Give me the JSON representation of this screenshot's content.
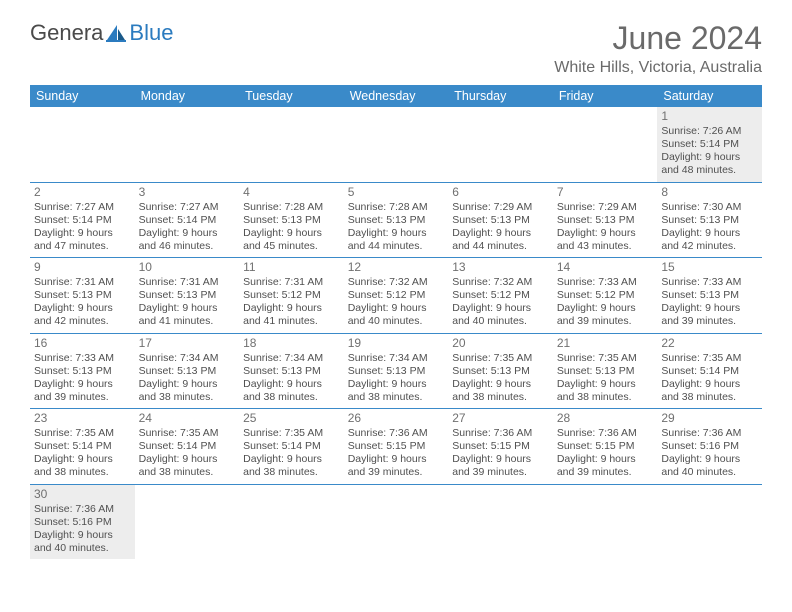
{
  "logo": {
    "part1": "Genera",
    "part2": "Blue"
  },
  "title": "June 2024",
  "location": "White Hills, Victoria, Australia",
  "colors": {
    "header_bg": "#3a8ac9",
    "header_text": "#ffffff",
    "rule": "#3a8ac9",
    "shade": "#ededed",
    "title_color": "#6a6a6a",
    "body_text": "#505050"
  },
  "weekdays": [
    "Sunday",
    "Monday",
    "Tuesday",
    "Wednesday",
    "Thursday",
    "Friday",
    "Saturday"
  ],
  "weeks": [
    [
      null,
      null,
      null,
      null,
      null,
      null,
      {
        "d": "1",
        "sr": "Sunrise: 7:26 AM",
        "ss": "Sunset: 5:14 PM",
        "dl1": "Daylight: 9 hours",
        "dl2": "and 48 minutes."
      }
    ],
    [
      {
        "d": "2",
        "sr": "Sunrise: 7:27 AM",
        "ss": "Sunset: 5:14 PM",
        "dl1": "Daylight: 9 hours",
        "dl2": "and 47 minutes."
      },
      {
        "d": "3",
        "sr": "Sunrise: 7:27 AM",
        "ss": "Sunset: 5:14 PM",
        "dl1": "Daylight: 9 hours",
        "dl2": "and 46 minutes."
      },
      {
        "d": "4",
        "sr": "Sunrise: 7:28 AM",
        "ss": "Sunset: 5:13 PM",
        "dl1": "Daylight: 9 hours",
        "dl2": "and 45 minutes."
      },
      {
        "d": "5",
        "sr": "Sunrise: 7:28 AM",
        "ss": "Sunset: 5:13 PM",
        "dl1": "Daylight: 9 hours",
        "dl2": "and 44 minutes."
      },
      {
        "d": "6",
        "sr": "Sunrise: 7:29 AM",
        "ss": "Sunset: 5:13 PM",
        "dl1": "Daylight: 9 hours",
        "dl2": "and 44 minutes."
      },
      {
        "d": "7",
        "sr": "Sunrise: 7:29 AM",
        "ss": "Sunset: 5:13 PM",
        "dl1": "Daylight: 9 hours",
        "dl2": "and 43 minutes."
      },
      {
        "d": "8",
        "sr": "Sunrise: 7:30 AM",
        "ss": "Sunset: 5:13 PM",
        "dl1": "Daylight: 9 hours",
        "dl2": "and 42 minutes."
      }
    ],
    [
      {
        "d": "9",
        "sr": "Sunrise: 7:31 AM",
        "ss": "Sunset: 5:13 PM",
        "dl1": "Daylight: 9 hours",
        "dl2": "and 42 minutes."
      },
      {
        "d": "10",
        "sr": "Sunrise: 7:31 AM",
        "ss": "Sunset: 5:13 PM",
        "dl1": "Daylight: 9 hours",
        "dl2": "and 41 minutes."
      },
      {
        "d": "11",
        "sr": "Sunrise: 7:31 AM",
        "ss": "Sunset: 5:12 PM",
        "dl1": "Daylight: 9 hours",
        "dl2": "and 41 minutes."
      },
      {
        "d": "12",
        "sr": "Sunrise: 7:32 AM",
        "ss": "Sunset: 5:12 PM",
        "dl1": "Daylight: 9 hours",
        "dl2": "and 40 minutes."
      },
      {
        "d": "13",
        "sr": "Sunrise: 7:32 AM",
        "ss": "Sunset: 5:12 PM",
        "dl1": "Daylight: 9 hours",
        "dl2": "and 40 minutes."
      },
      {
        "d": "14",
        "sr": "Sunrise: 7:33 AM",
        "ss": "Sunset: 5:12 PM",
        "dl1": "Daylight: 9 hours",
        "dl2": "and 39 minutes."
      },
      {
        "d": "15",
        "sr": "Sunrise: 7:33 AM",
        "ss": "Sunset: 5:13 PM",
        "dl1": "Daylight: 9 hours",
        "dl2": "and 39 minutes."
      }
    ],
    [
      {
        "d": "16",
        "sr": "Sunrise: 7:33 AM",
        "ss": "Sunset: 5:13 PM",
        "dl1": "Daylight: 9 hours",
        "dl2": "and 39 minutes."
      },
      {
        "d": "17",
        "sr": "Sunrise: 7:34 AM",
        "ss": "Sunset: 5:13 PM",
        "dl1": "Daylight: 9 hours",
        "dl2": "and 38 minutes."
      },
      {
        "d": "18",
        "sr": "Sunrise: 7:34 AM",
        "ss": "Sunset: 5:13 PM",
        "dl1": "Daylight: 9 hours",
        "dl2": "and 38 minutes."
      },
      {
        "d": "19",
        "sr": "Sunrise: 7:34 AM",
        "ss": "Sunset: 5:13 PM",
        "dl1": "Daylight: 9 hours",
        "dl2": "and 38 minutes."
      },
      {
        "d": "20",
        "sr": "Sunrise: 7:35 AM",
        "ss": "Sunset: 5:13 PM",
        "dl1": "Daylight: 9 hours",
        "dl2": "and 38 minutes."
      },
      {
        "d": "21",
        "sr": "Sunrise: 7:35 AM",
        "ss": "Sunset: 5:13 PM",
        "dl1": "Daylight: 9 hours",
        "dl2": "and 38 minutes."
      },
      {
        "d": "22",
        "sr": "Sunrise: 7:35 AM",
        "ss": "Sunset: 5:14 PM",
        "dl1": "Daylight: 9 hours",
        "dl2": "and 38 minutes."
      }
    ],
    [
      {
        "d": "23",
        "sr": "Sunrise: 7:35 AM",
        "ss": "Sunset: 5:14 PM",
        "dl1": "Daylight: 9 hours",
        "dl2": "and 38 minutes."
      },
      {
        "d": "24",
        "sr": "Sunrise: 7:35 AM",
        "ss": "Sunset: 5:14 PM",
        "dl1": "Daylight: 9 hours",
        "dl2": "and 38 minutes."
      },
      {
        "d": "25",
        "sr": "Sunrise: 7:35 AM",
        "ss": "Sunset: 5:14 PM",
        "dl1": "Daylight: 9 hours",
        "dl2": "and 38 minutes."
      },
      {
        "d": "26",
        "sr": "Sunrise: 7:36 AM",
        "ss": "Sunset: 5:15 PM",
        "dl1": "Daylight: 9 hours",
        "dl2": "and 39 minutes."
      },
      {
        "d": "27",
        "sr": "Sunrise: 7:36 AM",
        "ss": "Sunset: 5:15 PM",
        "dl1": "Daylight: 9 hours",
        "dl2": "and 39 minutes."
      },
      {
        "d": "28",
        "sr": "Sunrise: 7:36 AM",
        "ss": "Sunset: 5:15 PM",
        "dl1": "Daylight: 9 hours",
        "dl2": "and 39 minutes."
      },
      {
        "d": "29",
        "sr": "Sunrise: 7:36 AM",
        "ss": "Sunset: 5:16 PM",
        "dl1": "Daylight: 9 hours",
        "dl2": "and 40 minutes."
      }
    ],
    [
      {
        "d": "30",
        "sr": "Sunrise: 7:36 AM",
        "ss": "Sunset: 5:16 PM",
        "dl1": "Daylight: 9 hours",
        "dl2": "and 40 minutes."
      },
      null,
      null,
      null,
      null,
      null,
      null
    ]
  ]
}
